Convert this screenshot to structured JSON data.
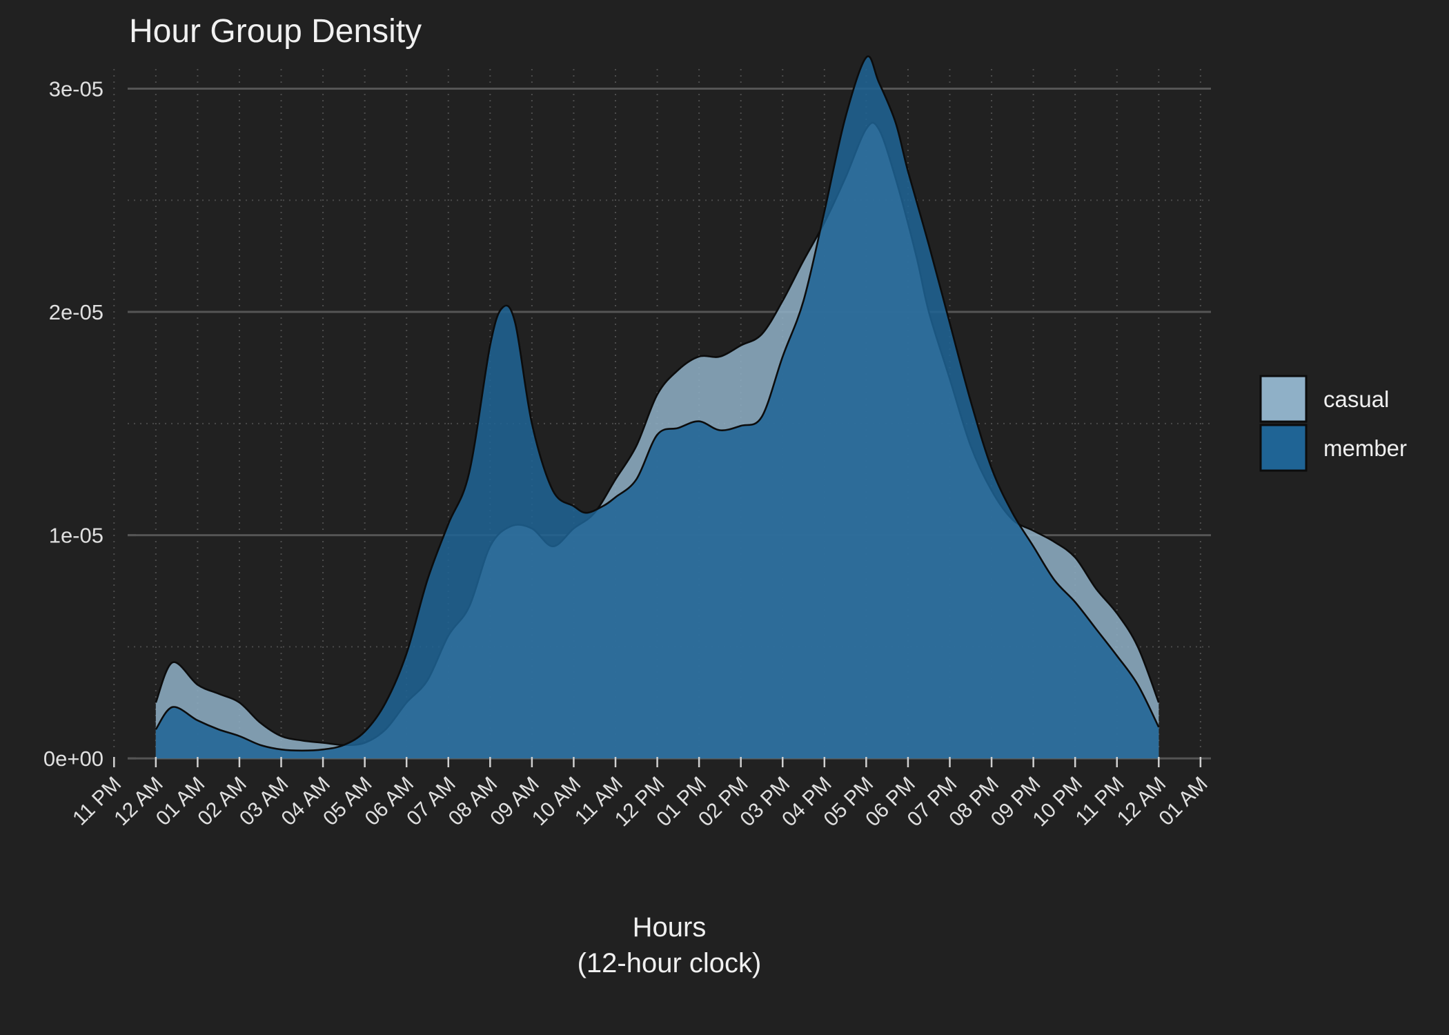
{
  "chart_data": {
    "type": "area",
    "title": "Hour Group Density",
    "xlabel": [
      "Hours",
      "(12-hour clock)"
    ],
    "ylabel": "",
    "x_ticks": [
      -1,
      0,
      1,
      2,
      3,
      4,
      5,
      6,
      7,
      8,
      9,
      10,
      11,
      12,
      13,
      14,
      15,
      16,
      17,
      18,
      19,
      20,
      21,
      22,
      23,
      24,
      25
    ],
    "x_tick_labels": [
      "11 PM",
      "12 AM",
      "01 AM",
      "02 AM",
      "03 AM",
      "04 AM",
      "05 AM",
      "06 AM",
      "07 AM",
      "08 AM",
      "09 AM",
      "10 AM",
      "11 AM",
      "12 PM",
      "01 PM",
      "02 PM",
      "03 PM",
      "04 PM",
      "05 PM",
      "06 PM",
      "07 PM",
      "08 PM",
      "09 PM",
      "10 PM",
      "11 PM",
      "12 AM",
      "01 AM"
    ],
    "xlim": [
      -1.5,
      25.25
    ],
    "y_ticks": [
      0,
      1e-05,
      2e-05,
      3e-05
    ],
    "y_tick_labels": [
      "0e+00",
      "1e-05",
      "2e-05",
      "3e-05"
    ],
    "ylim": [
      -8e-07,
      3.15e-05
    ],
    "grid": true,
    "legend_position": "right",
    "series": [
      {
        "name": "casual",
        "color": "#8fb0c7",
        "x": [
          0,
          0.4,
          1,
          1.5,
          2,
          2.5,
          3,
          3.5,
          4,
          4.5,
          5,
          5.5,
          6,
          6.5,
          7,
          7.5,
          8,
          8.5,
          9,
          9.5,
          10,
          10.5,
          11,
          11.5,
          12,
          12.5,
          13,
          13.5,
          14,
          14.5,
          15,
          15.5,
          16,
          16.5,
          17,
          17.3,
          17.7,
          18.2,
          18.5,
          19,
          19.5,
          20,
          20.5,
          21,
          21.5,
          22,
          22.5,
          23,
          23.5,
          24
        ],
        "y": [
          2.5e-06,
          4.3e-06,
          3.3e-06,
          2.9e-06,
          2.5e-06,
          1.6e-06,
          1e-06,
          8e-07,
          7e-07,
          6e-07,
          7e-07,
          1.3e-06,
          2.5e-06,
          3.5e-06,
          5.5e-06,
          6.8e-06,
          9.5e-06,
          1.04e-05,
          1.03e-05,
          9.5e-06,
          1.03e-05,
          1.1e-05,
          1.25e-05,
          1.4e-05,
          1.63e-05,
          1.74e-05,
          1.8e-05,
          1.8e-05,
          1.85e-05,
          1.9e-05,
          2.05e-05,
          2.23e-05,
          2.4e-05,
          2.6e-05,
          2.82e-05,
          2.82e-05,
          2.6e-05,
          2.25e-05,
          2e-05,
          1.7e-05,
          1.4e-05,
          1.2e-05,
          1.07e-05,
          1.02e-05,
          9.7e-06,
          9e-06,
          7.6e-06,
          6.5e-06,
          5e-06,
          2.5e-06
        ]
      },
      {
        "name": "member",
        "color": "#1f6495",
        "x": [
          0,
          0.4,
          1,
          1.5,
          2,
          2.5,
          3,
          3.5,
          4,
          4.5,
          5,
          5.5,
          6,
          6.5,
          7,
          7.5,
          8,
          8.3,
          8.6,
          9,
          9.5,
          10,
          10.3,
          10.7,
          11,
          11.5,
          12,
          12.5,
          13,
          13.5,
          14,
          14.5,
          15,
          15.5,
          16,
          16.5,
          17,
          17.3,
          17.7,
          18,
          18.5,
          19,
          19.5,
          20,
          20.5,
          21,
          21.5,
          22,
          22.5,
          23,
          23.5,
          24
        ],
        "y": [
          1.3e-06,
          2.3e-06,
          1.7e-06,
          1.3e-06,
          1e-06,
          6e-07,
          4e-07,
          3.5e-07,
          4e-07,
          6e-07,
          1.2e-06,
          2.5e-06,
          4.7e-06,
          8e-06,
          1.05e-05,
          1.28e-05,
          1.85e-05,
          2.02e-05,
          1.95e-05,
          1.5e-05,
          1.2e-05,
          1.13e-05,
          1.1e-05,
          1.13e-05,
          1.17e-05,
          1.25e-05,
          1.45e-05,
          1.48e-05,
          1.51e-05,
          1.47e-05,
          1.49e-05,
          1.53e-05,
          1.8e-05,
          2.05e-05,
          2.45e-05,
          2.87e-05,
          3.14e-05,
          3.03e-05,
          2.85e-05,
          2.63e-05,
          2.3e-05,
          1.95e-05,
          1.6e-05,
          1.3e-05,
          1.1e-05,
          9.5e-06,
          8e-06,
          7e-06,
          5.8e-06,
          4.6e-06,
          3.3e-06,
          1.4e-06
        ]
      }
    ]
  }
}
